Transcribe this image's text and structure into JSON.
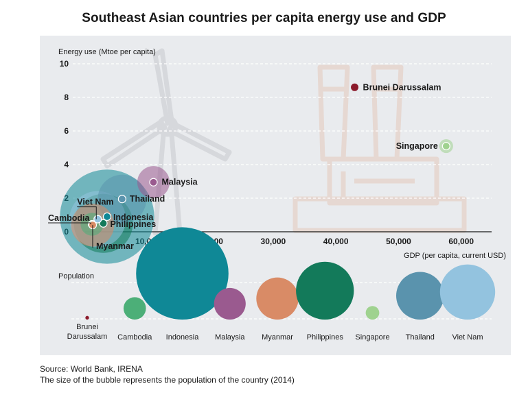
{
  "title": "Southeast Asian countries per capita energy use and GDP",
  "source": "Source: World Bank, IRENA",
  "note": "The size of the bubble represents the population of the country (2014)",
  "colors": {
    "Brunei Darussalam": "#8b1a2b",
    "Cambodia": "#4caf78",
    "Indonesia": "#0f8896",
    "Malaysia": "#9a5a8f",
    "Myanmar": "#d98b66",
    "Philippines": "#137a5a",
    "Singapore": "#9fd28f",
    "Thailand": "#5a93ad",
    "Viet Nam": "#93c3df"
  },
  "chart_data": [
    {
      "type": "scatter",
      "xlabel": "GDP (per capita, current USD)",
      "ylabel": "Energy use (Mtoe per capita)",
      "xlim": [
        0,
        62000
      ],
      "ylim": [
        0,
        10
      ],
      "xticks": [
        10000,
        20000,
        30000,
        40000,
        50000,
        60000
      ],
      "xtick_labels": [
        "10,000",
        "20,000",
        "30,000",
        "40,000",
        "50,000",
        "60,000"
      ],
      "yticks": [
        0,
        2,
        4,
        6,
        8,
        10
      ],
      "ytick_labels": [
        "0",
        "2",
        "4",
        "6",
        "8",
        "10"
      ],
      "grid": true,
      "points": [
        {
          "name": "Brunei Darussalam",
          "x": 43000,
          "y": 8.6,
          "population": 0.4
        },
        {
          "name": "Singapore",
          "x": 57600,
          "y": 5.1,
          "population": 5.5
        },
        {
          "name": "Malaysia",
          "x": 10900,
          "y": 2.95,
          "population": 30
        },
        {
          "name": "Thailand",
          "x": 5900,
          "y": 1.95,
          "population": 68
        },
        {
          "name": "Indonesia",
          "x": 3500,
          "y": 0.9,
          "population": 255
        },
        {
          "name": "Philippines",
          "x": 2900,
          "y": 0.5,
          "population": 100
        },
        {
          "name": "Viet Nam",
          "x": 2000,
          "y": 0.75,
          "population": 91
        },
        {
          "name": "Cambodia",
          "x": 1100,
          "y": 0.45,
          "population": 15
        },
        {
          "name": "Myanmar",
          "x": 1200,
          "y": 0.4,
          "population": 53
        }
      ]
    },
    {
      "type": "bubble",
      "title": "Population",
      "categories": [
        "Brunei Darussalam",
        "Cambodia",
        "Indonesia",
        "Malaysia",
        "Myanmar",
        "Philippines",
        "Singapore",
        "Thailand",
        "Viet Nam"
      ],
      "category_labels": [
        [
          "Brunei",
          "Darussalam"
        ],
        [
          "Cambodia"
        ],
        [
          "Indonesia"
        ],
        [
          "Malaysia"
        ],
        [
          "Myanmar"
        ],
        [
          "Philippines"
        ],
        [
          "Singapore"
        ],
        [
          "Thailand"
        ],
        [
          "Viet Nam"
        ]
      ],
      "values": [
        0.4,
        15,
        255,
        30,
        53,
        100,
        5.5,
        68,
        91
      ]
    }
  ]
}
